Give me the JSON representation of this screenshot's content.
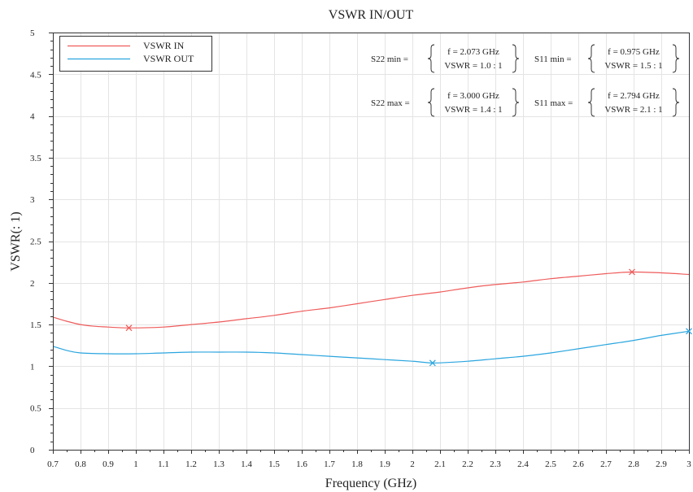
{
  "chart_data": {
    "type": "line",
    "title": "VSWR IN/OUT",
    "xlabel": "Frequency (GHz)",
    "ylabel": "VSWR(: 1)",
    "xlim": [
      0.7,
      3
    ],
    "ylim": [
      0,
      5
    ],
    "x_ticks": [
      "0.7",
      "0.8",
      "0.9",
      "1",
      "1.1",
      "1.2",
      "1.3",
      "1.4",
      "1.5",
      "1.6",
      "1.7",
      "1.8",
      "1.9",
      "2",
      "2.1",
      "2.2",
      "2.3",
      "2.4",
      "2.5",
      "2.6",
      "2.7",
      "2.8",
      "2.9",
      "3"
    ],
    "y_ticks": [
      "0",
      "0.5",
      "1",
      "1.5",
      "2",
      "2.5",
      "3",
      "3.5",
      "4",
      "4.5",
      "5"
    ],
    "grid": true,
    "legend": "top-left",
    "series": [
      {
        "name": "VSWR IN",
        "color": "#ef5b5b",
        "x": [
          0.7,
          0.75,
          0.8,
          0.85,
          0.9,
          0.975,
          1.1,
          1.2,
          1.3,
          1.4,
          1.5,
          1.6,
          1.7,
          1.8,
          1.9,
          2.0,
          2.1,
          2.2,
          2.3,
          2.4,
          2.5,
          2.6,
          2.7,
          2.794,
          2.9,
          3.0
        ],
        "y": [
          1.59,
          1.54,
          1.5,
          1.48,
          1.47,
          1.46,
          1.47,
          1.5,
          1.53,
          1.57,
          1.61,
          1.66,
          1.7,
          1.75,
          1.8,
          1.85,
          1.89,
          1.94,
          1.98,
          2.01,
          2.05,
          2.08,
          2.11,
          2.13,
          2.12,
          2.1
        ]
      },
      {
        "name": "VSWR OUT",
        "color": "#2aa5df",
        "x": [
          0.7,
          0.75,
          0.8,
          0.9,
          1.0,
          1.1,
          1.2,
          1.3,
          1.4,
          1.5,
          1.6,
          1.7,
          1.8,
          1.9,
          2.0,
          2.073,
          2.15,
          2.2,
          2.3,
          2.4,
          2.5,
          2.6,
          2.7,
          2.8,
          2.9,
          3.0
        ],
        "y": [
          1.24,
          1.19,
          1.16,
          1.15,
          1.15,
          1.16,
          1.17,
          1.17,
          1.17,
          1.16,
          1.14,
          1.12,
          1.1,
          1.08,
          1.06,
          1.04,
          1.05,
          1.06,
          1.09,
          1.12,
          1.16,
          1.21,
          1.26,
          1.31,
          1.37,
          1.42
        ]
      }
    ],
    "markers": [
      {
        "series_index": 0,
        "x": 0.975,
        "y": 1.46
      },
      {
        "series_index": 0,
        "x": 2.794,
        "y": 2.13
      },
      {
        "series_index": 1,
        "x": 2.073,
        "y": 1.04
      },
      {
        "series_index": 1,
        "x": 3.0,
        "y": 1.42
      }
    ],
    "annotations": [
      {
        "label": "S22 min =",
        "f": "f = 2.073 GHz",
        "vswr": "VSWR = 1.0 : 1"
      },
      {
        "label": "S11 min =",
        "f": "f = 0.975 GHz",
        "vswr": "VSWR = 1.5 : 1"
      },
      {
        "label": "S22 max =",
        "f": "f = 3.000 GHz",
        "vswr": "VSWR = 1.4 : 1"
      },
      {
        "label": "S11 max =",
        "f": "f = 2.794 GHz",
        "vswr": "VSWR = 2.1 : 1"
      }
    ]
  }
}
